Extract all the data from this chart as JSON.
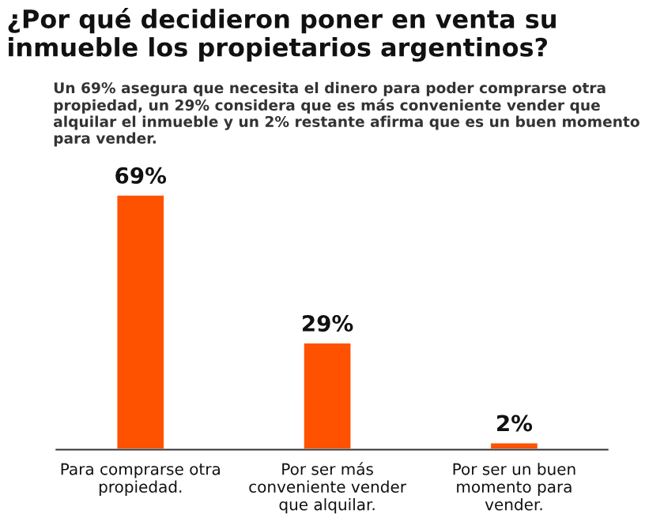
{
  "chart_data": {
    "type": "bar",
    "title": "¿Por qué decidieron poner en venta su inmueble los propietarios argentinos?",
    "subtitle": "Un 69% asegura que necesita el dinero para poder comprarse otra propiedad, un 29% considera que es más conveniente vender que alquilar el inmueble y un 2% restante afirma que es un buen momento para vender.",
    "categories": [
      "Para comprarse otra propiedad.",
      "Por ser más conveniente vender que alquilar.",
      "Por ser un buen momento para vender."
    ],
    "values": [
      69,
      29,
      2
    ],
    "value_labels": [
      "69%",
      "29%",
      "2%"
    ],
    "color": "#ff5200",
    "grid": false,
    "legend": false
  }
}
